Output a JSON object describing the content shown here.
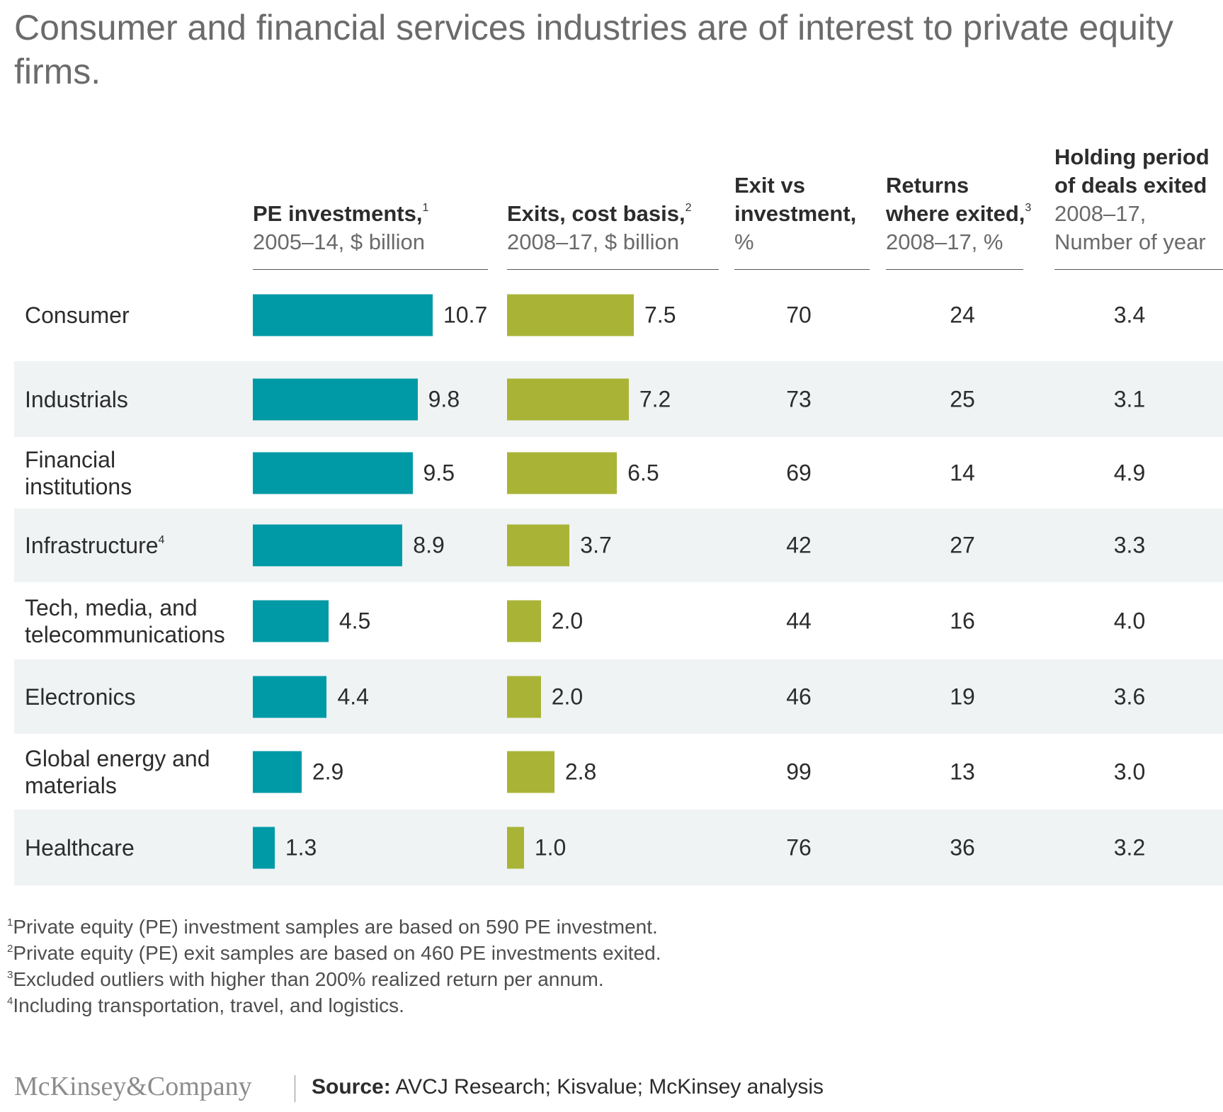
{
  "title": "Consumer and financial services industries are of interest to private equity firms.",
  "columns": {
    "pe": {
      "label": "PE investments,",
      "sup": "1",
      "sub": "2005–14, $ billion"
    },
    "exits": {
      "label": "Exits, cost basis,",
      "sup": "2",
      "sub": "2008–17, $ billion"
    },
    "exit_vs": {
      "label1": "Exit vs",
      "label2": "investment,",
      "sub": "%"
    },
    "returns": {
      "label1": "Returns",
      "label2": "where exited,",
      "sup": "3",
      "sub": "2008–17, %"
    },
    "holding": {
      "label1": "Holding period",
      "label2": "of deals exited",
      "sub1": "2008–17,",
      "sub2": "Number of year"
    }
  },
  "colors": {
    "pe_bar": "#009aa6",
    "exit_bar": "#a9b437",
    "row_shade": "#eff3f4"
  },
  "chart_data": {
    "type": "bar",
    "categories": [
      "Consumer",
      "Industrials",
      "Financial institutions",
      "Infrastructure",
      "Tech, media, and telecommunications",
      "Electronics",
      "Global energy and materials",
      "Healthcare"
    ],
    "label_lines": [
      [
        "Consumer"
      ],
      [
        "Industrials"
      ],
      [
        "Financial",
        "institutions"
      ],
      [
        "Infrastructure"
      ],
      [
        "Tech, media, and",
        "telecommunications"
      ],
      [
        "Electronics"
      ],
      [
        "Global energy and",
        "materials"
      ],
      [
        "Healthcare"
      ]
    ],
    "label_sups": [
      "",
      "",
      "",
      "4",
      "",
      "",
      "",
      ""
    ],
    "series": [
      {
        "name": "PE investments, 2005–14, $ billion",
        "values": [
          10.7,
          9.8,
          9.5,
          8.9,
          4.5,
          4.4,
          2.9,
          1.3
        ]
      },
      {
        "name": "Exits, cost basis, 2008–17, $ billion",
        "values": [
          7.5,
          7.2,
          6.5,
          3.7,
          2.0,
          2.0,
          2.8,
          1.0
        ]
      }
    ],
    "value_labels": {
      "pe": [
        "10.7",
        "9.8",
        "9.5",
        "8.9",
        "4.5",
        "4.4",
        "2.9",
        "1.3"
      ],
      "exits": [
        "7.5",
        "7.2",
        "6.5",
        "3.7",
        "2.0",
        "2.0",
        "2.8",
        "1.0"
      ]
    },
    "table": {
      "exit_vs_investment": [
        "70",
        "73",
        "69",
        "42",
        "44",
        "46",
        "99",
        "76"
      ],
      "returns_where_exited": [
        "24",
        "25",
        "14",
        "27",
        "16",
        "19",
        "13",
        "36"
      ],
      "holding_period": [
        "3.4",
        "3.1",
        "4.9",
        "3.3",
        "4.0",
        "3.6",
        "3.0",
        "3.2"
      ]
    }
  },
  "footnotes": [
    {
      "sup": "1",
      "text": "Private equity (PE) investment samples are based on 590 PE investment."
    },
    {
      "sup": "2",
      "text": "Private equity (PE) exit samples are based on 460 PE investments exited."
    },
    {
      "sup": "3",
      "text": "Excluded outliers with higher than 200% realized return per annum."
    },
    {
      "sup": "4",
      "text": "Including transportation, travel, and logistics."
    }
  ],
  "footer": {
    "brand": "McKinsey&Company",
    "source_label": "Source:",
    "source_text": " AVCJ Research; Kisvalue; McKinsey analysis"
  }
}
